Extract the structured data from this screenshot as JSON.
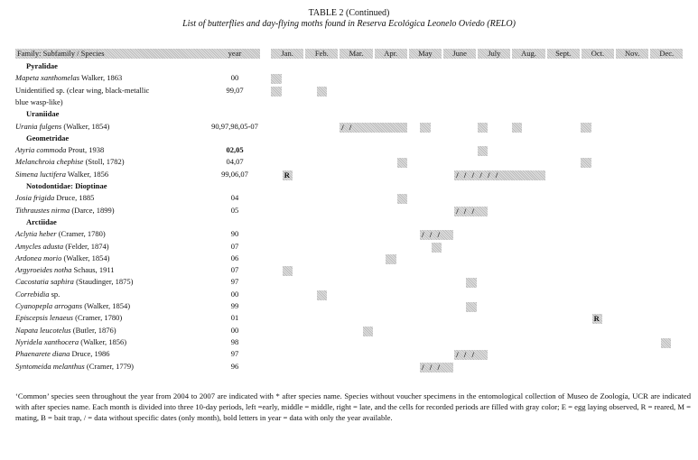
{
  "caption": {
    "table_number": "TABLE 2 (Continued)",
    "title": "List of butterflies and day-flying moths found in Reserva Ecológica Leonelo Oviedo (RELO)"
  },
  "header": {
    "species_col": "Family: Subfamily / Species",
    "year_col": "year",
    "months": [
      "Jan.",
      "Feb.",
      "Mar.",
      "Apr.",
      "May",
      "June",
      "July",
      "Aug.",
      "Sept.",
      "Oct.",
      "Nov.",
      "Dec."
    ]
  },
  "rows": [
    {
      "kind": "group",
      "label": "Pyralidae"
    },
    {
      "kind": "species",
      "genus": "Mapeta xanthomelas",
      "author": " Walker, 1863",
      "year": "00",
      "year_bold": false,
      "marks": [
        {
          "start": 0,
          "len": 0
        }
      ]
    },
    {
      "kind": "species",
      "genus": "",
      "author": "Unidentified sp. (clear wing, black-metallic",
      "year": "99,07",
      "year_bold": false,
      "marks": [
        {
          "start": 0,
          "len": 1
        },
        {
          "start": 4,
          "len": 1
        }
      ]
    },
    {
      "kind": "cont",
      "label": "blue wasp-like)"
    },
    {
      "kind": "group",
      "label": "Uraniidae"
    },
    {
      "kind": "species",
      "genus": "Urania fulgens",
      "author": " (Walker, 1854)",
      "year": "90,97,98,05-07",
      "year_bold": false,
      "marks": [
        {
          "start": 6,
          "len": 6,
          "text": "/   /"
        },
        {
          "start": 13,
          "len": 1
        },
        {
          "start": 18,
          "len": 1
        },
        {
          "start": 21,
          "len": 1
        },
        {
          "start": 27,
          "len": 1
        }
      ]
    },
    {
      "kind": "group",
      "label": "Geometridae"
    },
    {
      "kind": "species",
      "genus": "Atyria commoda",
      "author": " Prout, 1938",
      "year": "02,05",
      "year_bold": true,
      "marks": [
        {
          "start": 18,
          "len": 1
        }
      ]
    },
    {
      "kind": "species",
      "genus": "Melanchroia chephise",
      "author": " (Stoll, 1782)",
      "year": "04,07",
      "year_bold": false,
      "marks": [
        {
          "start": 11,
          "len": 1
        },
        {
          "start": 27,
          "len": 1
        }
      ]
    },
    {
      "kind": "species",
      "genus": "Simena luctifera",
      "author": " Walker, 1856",
      "year": "99,06,07",
      "year_bold": false,
      "marks": [
        {
          "start": 1,
          "len": 1,
          "text": "R"
        },
        {
          "start": 16,
          "len": 8,
          "text": "/   /   /   /   /   /"
        }
      ]
    },
    {
      "kind": "group",
      "label": "Notodontidae: Dioptinae"
    },
    {
      "kind": "species",
      "genus": "Josia frigida",
      "author": " Druce, 1885",
      "year": "04",
      "year_bold": false,
      "marks": [
        {
          "start": 11,
          "len": 1
        }
      ]
    },
    {
      "kind": "species",
      "genus": "Tithraustes nirma",
      "author": " (Darce, 1899)",
      "year": "05",
      "year_bold": false,
      "marks": [
        {
          "start": 16,
          "len": 3,
          "text": "/   /   /"
        }
      ]
    },
    {
      "kind": "group",
      "label": "Arctiidae"
    },
    {
      "kind": "species",
      "genus": "Aclytia heber",
      "author": " (Cramer, 1780)",
      "year": "90",
      "year_bold": false,
      "marks": [
        {
          "start": 13,
          "len": 3,
          "text": "/   /   /"
        }
      ]
    },
    {
      "kind": "species",
      "genus": "Amycles adusta",
      "author": " (Felder, 1874)",
      "year": "07",
      "year_bold": false,
      "marks": [
        {
          "start": 14,
          "len": 1
        }
      ]
    },
    {
      "kind": "species",
      "genus": "Ardonea morio",
      "author": " (Walker, 1854)",
      "year": "06",
      "year_bold": false,
      "marks": [
        {
          "start": 10,
          "len": 1
        }
      ]
    },
    {
      "kind": "species",
      "genus": "Argyroeides notha",
      "author": " Schaus, 1911",
      "year": "07",
      "year_bold": false,
      "marks": [
        {
          "start": 1,
          "len": 1
        }
      ]
    },
    {
      "kind": "species",
      "genus": "Cacostatia saphira",
      "author": " (Staudinger, 1875)",
      "year": "97",
      "year_bold": false,
      "marks": [
        {
          "start": 17,
          "len": 1
        }
      ]
    },
    {
      "kind": "species",
      "genus": "Correbidia",
      "author": " sp.",
      "year": "00",
      "year_bold": false,
      "marks": [
        {
          "start": 4,
          "len": 1
        }
      ]
    },
    {
      "kind": "species",
      "genus": "Cyanopepla arrogans",
      "author": " (Walker, 1854)",
      "year": "99",
      "year_bold": false,
      "marks": [
        {
          "start": 17,
          "len": 1
        }
      ]
    },
    {
      "kind": "species",
      "genus": "Episcepsis lenaeus",
      "author": " (Cramer, 1780)",
      "year": "01",
      "year_bold": false,
      "marks": [
        {
          "start": 28,
          "len": 1,
          "text": "R"
        }
      ]
    },
    {
      "kind": "species",
      "genus": "Napata leucotelus",
      "author": " (Butler, 1876)",
      "year": "00",
      "year_bold": false,
      "marks": [
        {
          "start": 8,
          "len": 1
        }
      ]
    },
    {
      "kind": "species",
      "genus": "Nyridela xanthocera",
      "author": " (Walker, 1856)",
      "year": "98",
      "year_bold": false,
      "marks": [
        {
          "start": 34,
          "len": 1
        }
      ]
    },
    {
      "kind": "species",
      "genus": "Phaenarete diana",
      "author": " Druce, 1986",
      "year": "97",
      "year_bold": false,
      "marks": [
        {
          "start": 16,
          "len": 3,
          "text": "/   /   /"
        }
      ]
    },
    {
      "kind": "species",
      "genus": "Syntomeida melanthus",
      "author": " (Cramer, 1779)",
      "year": "96",
      "year_bold": false,
      "marks": [
        {
          "start": 13,
          "len": 3,
          "text": "/   /   /"
        }
      ]
    }
  ],
  "footnote": "‘Common’ species seen throughout the year from 2004 to 2007 are indicated with * after species name. Species without voucher specimens in the entomological collection of Museo de Zoología, UCR are indicated with after species name. Each month is divided into three 10-day periods, left =early, middle = middle, right = late, and the cells for recorded periods are filled with gray color; E = egg laying observed, R = reared, M = mating, B = bait trap, / = data without specific dates (only month), bold letters in year = data with only the year available.",
  "colors": {
    "fill": "#bcbcbc",
    "text": "#111111"
  }
}
